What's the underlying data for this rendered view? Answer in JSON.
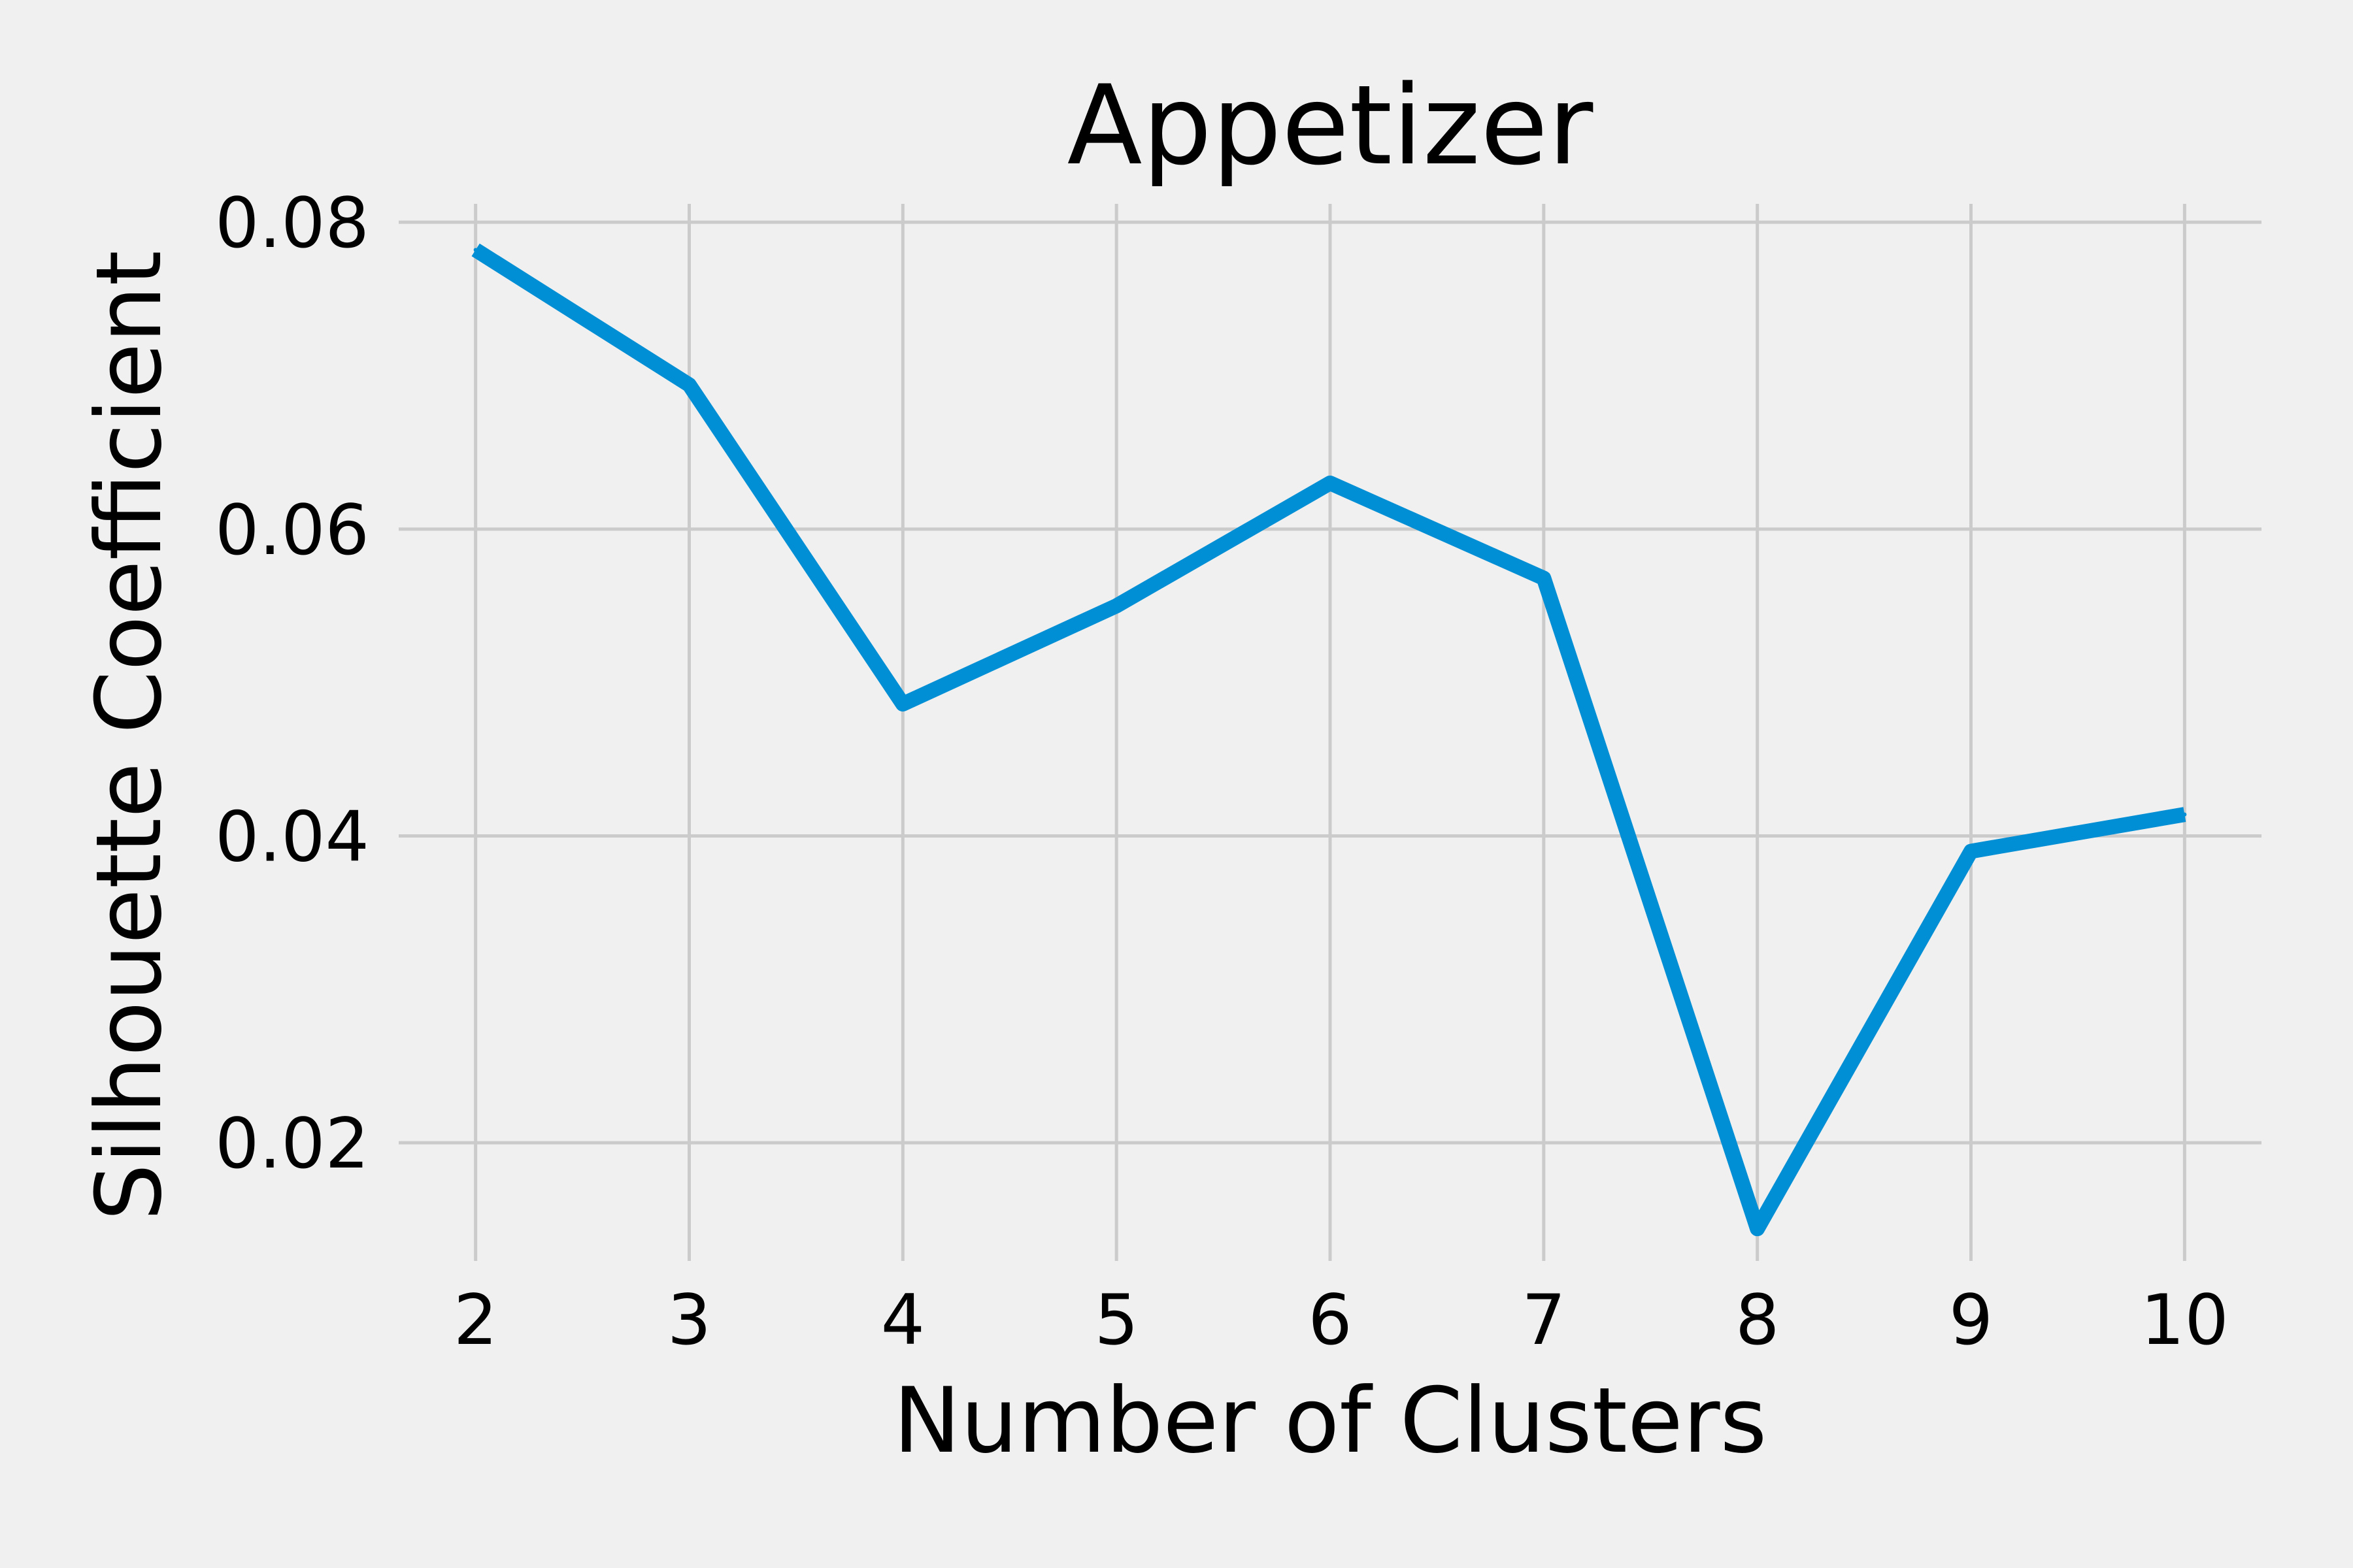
{
  "colors": {
    "background": "#f0f0f0",
    "grid": "#cbcbcb",
    "series": "#008fd5",
    "text": "#000000"
  },
  "chart_data": {
    "type": "line",
    "title": "Appetizer",
    "xlabel": "Number of Clusters",
    "ylabel": "Silhouette Coefficient",
    "x": [
      2,
      3,
      4,
      5,
      6,
      7,
      8,
      9,
      10
    ],
    "series": [
      {
        "values": [
          0.0782,
          0.0694,
          0.0486,
          0.055,
          0.063,
          0.0568,
          0.0144,
          0.039,
          0.0414
        ]
      }
    ],
    "xticks": [
      "2",
      "3",
      "4",
      "5",
      "6",
      "7",
      "8",
      "9",
      "10"
    ],
    "yticks": [
      "0.02",
      "0.04",
      "0.06",
      "0.08"
    ],
    "xlim": [
      1.64,
      10.36
    ],
    "ylim": [
      0.0123,
      0.0812
    ],
    "grid": true,
    "legend": "none"
  }
}
